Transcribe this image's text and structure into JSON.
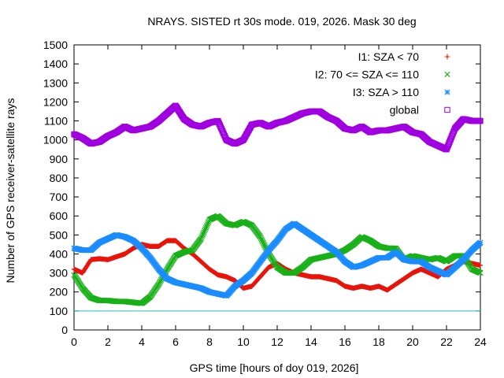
{
  "chart_data": {
    "type": "scatter",
    "title": "NRAYS. SISTED rt 30s mode. 019, 2026. Mask 30 deg",
    "xlabel": "GPS time [hours of doy 019, 2026]",
    "ylabel": "Number of GPS receiver-satellite rays",
    "xlim": [
      0,
      24
    ],
    "ylim": [
      0,
      1500
    ],
    "x_ticks": [
      "0",
      "2",
      "4",
      "6",
      "8",
      "10",
      "12",
      "14",
      "16",
      "18",
      "20",
      "22",
      "24"
    ],
    "y_ticks": [
      "0",
      "100",
      "200",
      "300",
      "400",
      "500",
      "600",
      "700",
      "800",
      "900",
      "1000",
      "1100",
      "1200",
      "1300",
      "1400",
      "1500"
    ],
    "legend_position": "top-right",
    "reference_line": {
      "y": 100,
      "color": "#20c0c0"
    },
    "series": [
      {
        "name": "I1: SZA < 70",
        "marker": "+",
        "color": "#e8140a",
        "x": [
          0,
          0.5,
          1,
          1.5,
          2,
          2.5,
          3,
          3.5,
          4,
          4.5,
          5,
          5.5,
          6,
          6.5,
          7,
          7.5,
          8,
          8.5,
          9,
          9.5,
          10,
          10.5,
          11,
          11.5,
          12,
          12.5,
          13,
          13.5,
          14,
          14.5,
          15,
          15.5,
          16,
          16.5,
          17,
          17.5,
          18,
          18.5,
          19,
          19.5,
          20,
          20.5,
          21,
          21.5,
          22,
          22.5,
          23,
          23.5,
          24
        ],
        "values": [
          320,
          300,
          370,
          375,
          370,
          385,
          400,
          430,
          450,
          440,
          440,
          470,
          470,
          430,
          400,
          360,
          320,
          290,
          280,
          260,
          220,
          230,
          280,
          330,
          350,
          320,
          300,
          290,
          280,
          280,
          270,
          260,
          230,
          220,
          230,
          220,
          230,
          210,
          240,
          270,
          300,
          320,
          300,
          280,
          320,
          340,
          360,
          350,
          340
        ]
      },
      {
        "name": "I2: 70 <= SZA <= 110",
        "marker": "x",
        "color": "#18b018",
        "x": [
          0,
          0.5,
          1,
          1.5,
          2,
          2.5,
          3,
          3.5,
          4,
          4.5,
          5,
          5.5,
          6,
          6.5,
          7,
          7.5,
          8,
          8.5,
          9,
          9.5,
          10,
          10.5,
          11,
          11.5,
          12,
          12.5,
          13,
          13.5,
          14,
          14.5,
          15,
          15.5,
          16,
          16.5,
          17,
          17.5,
          18,
          18.5,
          19,
          19.5,
          20,
          20.5,
          21,
          21.5,
          22,
          22.5,
          23,
          23.5,
          24
        ],
        "values": [
          290,
          220,
          170,
          155,
          155,
          150,
          150,
          145,
          140,
          175,
          240,
          320,
          390,
          410,
          420,
          480,
          580,
          600,
          560,
          550,
          570,
          550,
          490,
          400,
          330,
          300,
          300,
          330,
          370,
          380,
          390,
          400,
          420,
          450,
          490,
          470,
          440,
          430,
          430,
          370,
          390,
          380,
          370,
          380,
          360,
          390,
          390,
          320,
          300
        ]
      },
      {
        "name": "I3: SZA > 110",
        "marker": "*",
        "color": "#1a8cff",
        "x": [
          0,
          0.5,
          1,
          1.5,
          2,
          2.5,
          3,
          3.5,
          4,
          4.5,
          5,
          5.5,
          6,
          6.5,
          7,
          7.5,
          8,
          8.5,
          9,
          9.5,
          10,
          10.5,
          11,
          11.5,
          12,
          12.5,
          13,
          13.5,
          14,
          14.5,
          15,
          15.5,
          16,
          16.5,
          17,
          17.5,
          18,
          18.5,
          19,
          19.5,
          20,
          20.5,
          21,
          21.5,
          22,
          22.5,
          23,
          23.5,
          24
        ],
        "values": [
          430,
          420,
          420,
          460,
          480,
          500,
          490,
          470,
          430,
          380,
          320,
          270,
          250,
          240,
          230,
          220,
          200,
          190,
          180,
          230,
          260,
          300,
          360,
          420,
          470,
          530,
          560,
          530,
          500,
          470,
          440,
          410,
          360,
          330,
          340,
          360,
          380,
          380,
          410,
          370,
          360,
          360,
          330,
          310,
          290,
          330,
          370,
          420,
          460
        ]
      },
      {
        "name": "global",
        "marker": "square",
        "color": "#a000e0",
        "x": [
          0,
          0.5,
          1,
          1.5,
          2,
          2.5,
          3,
          3.5,
          4,
          4.5,
          5,
          5.5,
          6,
          6.5,
          7,
          7.5,
          8,
          8.5,
          9,
          9.5,
          10,
          10.5,
          11,
          11.5,
          12,
          12.5,
          13,
          13.5,
          14,
          14.5,
          15,
          15.5,
          16,
          16.5,
          17,
          17.5,
          18,
          18.5,
          19,
          19.5,
          20,
          20.5,
          21,
          21.5,
          22,
          22.5,
          23,
          23.5,
          24
        ],
        "values": [
          1030,
          1010,
          980,
          990,
          1020,
          1040,
          1070,
          1050,
          1060,
          1070,
          1100,
          1140,
          1180,
          1110,
          1080,
          1070,
          1090,
          1100,
          1000,
          980,
          1000,
          1080,
          1090,
          1070,
          1090,
          1100,
          1120,
          1140,
          1150,
          1150,
          1120,
          1100,
          1060,
          1050,
          1070,
          1040,
          1050,
          1050,
          1060,
          1070,
          1040,
          1030,
          990,
          970,
          950,
          1060,
          1110,
          1100,
          1100
        ]
      }
    ]
  }
}
